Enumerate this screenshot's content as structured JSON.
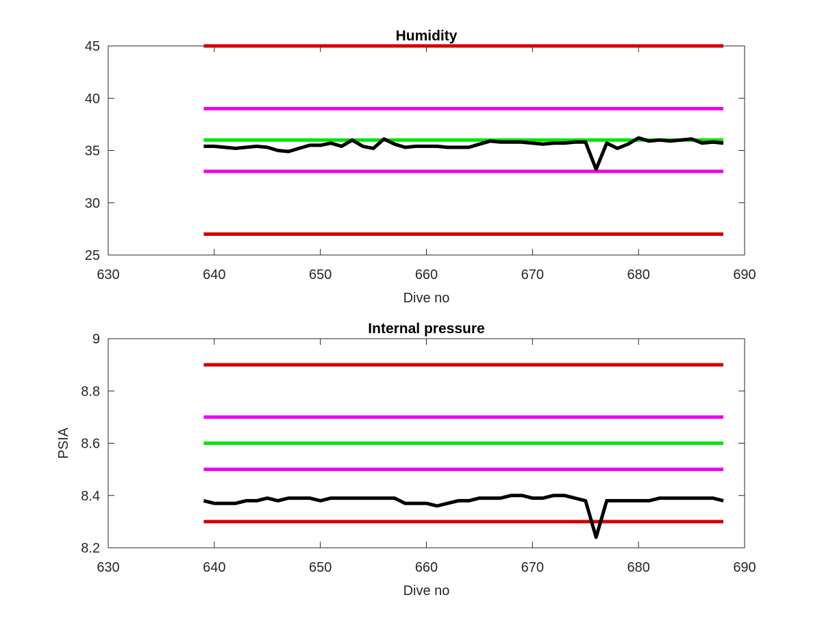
{
  "colors": {
    "red_limit": "#d00000",
    "magenta_limit": "#ee00ee",
    "green_target": "#00e600",
    "measurement": "#000000",
    "axes": "#262626"
  },
  "chart_data": [
    {
      "type": "line",
      "title": "Humidity",
      "xlabel": "Dive no",
      "ylabel": "",
      "xlim": [
        630,
        690
      ],
      "ylim": [
        25,
        45
      ],
      "xticks": [
        630,
        640,
        650,
        660,
        670,
        680,
        690
      ],
      "yticks": [
        25,
        30,
        35,
        40,
        45
      ],
      "xtick_labels": [
        "630",
        "640",
        "650",
        "660",
        "670",
        "680",
        "690"
      ],
      "ytick_labels": [
        "25",
        "30",
        "35",
        "40",
        "45"
      ],
      "grid": false,
      "series": [
        {
          "role": "red_limit",
          "x": [
            639,
            688
          ],
          "values": [
            45,
            45
          ]
        },
        {
          "role": "magenta_limit",
          "x": [
            639,
            688
          ],
          "values": [
            39,
            39
          ]
        },
        {
          "role": "green_target",
          "x": [
            639,
            688
          ],
          "values": [
            36,
            36
          ]
        },
        {
          "role": "magenta_limit",
          "x": [
            639,
            688
          ],
          "values": [
            33,
            33
          ]
        },
        {
          "role": "red_limit",
          "x": [
            639,
            688
          ],
          "values": [
            27,
            27
          ]
        },
        {
          "role": "measurement",
          "x": [
            639,
            640,
            641,
            642,
            643,
            644,
            645,
            646,
            647,
            648,
            649,
            650,
            651,
            652,
            653,
            654,
            655,
            656,
            657,
            658,
            659,
            660,
            661,
            662,
            663,
            664,
            665,
            666,
            667,
            668,
            669,
            670,
            671,
            672,
            673,
            674,
            675,
            676,
            677,
            678,
            679,
            680,
            681,
            682,
            683,
            684,
            685,
            686,
            687,
            688
          ],
          "values": [
            35.4,
            35.4,
            35.3,
            35.2,
            35.3,
            35.4,
            35.3,
            35.0,
            34.9,
            35.2,
            35.5,
            35.5,
            35.7,
            35.4,
            36.0,
            35.4,
            35.2,
            36.1,
            35.6,
            35.3,
            35.4,
            35.4,
            35.4,
            35.3,
            35.3,
            35.3,
            35.6,
            35.9,
            35.8,
            35.8,
            35.8,
            35.7,
            35.6,
            35.7,
            35.7,
            35.8,
            35.8,
            33.2,
            35.7,
            35.2,
            35.6,
            36.2,
            35.9,
            36.0,
            35.9,
            36.0,
            36.1,
            35.7,
            35.8,
            35.7
          ]
        }
      ]
    },
    {
      "type": "line",
      "title": "Internal pressure",
      "xlabel": "Dive no",
      "ylabel": "PSIA",
      "xlim": [
        630,
        690
      ],
      "ylim": [
        8.2,
        9
      ],
      "xticks": [
        630,
        640,
        650,
        660,
        670,
        680,
        690
      ],
      "yticks": [
        8.2,
        8.4,
        8.6,
        8.8,
        9
      ],
      "xtick_labels": [
        "630",
        "640",
        "650",
        "660",
        "670",
        "680",
        "690"
      ],
      "ytick_labels": [
        "8.2",
        "8.4",
        "8.6",
        "8.8",
        "9"
      ],
      "grid": false,
      "series": [
        {
          "role": "red_limit",
          "x": [
            639,
            688
          ],
          "values": [
            8.9,
            8.9
          ]
        },
        {
          "role": "magenta_limit",
          "x": [
            639,
            688
          ],
          "values": [
            8.7,
            8.7
          ]
        },
        {
          "role": "green_target",
          "x": [
            639,
            688
          ],
          "values": [
            8.6,
            8.6
          ]
        },
        {
          "role": "magenta_limit",
          "x": [
            639,
            688
          ],
          "values": [
            8.5,
            8.5
          ]
        },
        {
          "role": "red_limit",
          "x": [
            639,
            688
          ],
          "values": [
            8.3,
            8.3
          ]
        },
        {
          "role": "measurement",
          "x": [
            639,
            640,
            641,
            642,
            643,
            644,
            645,
            646,
            647,
            648,
            649,
            650,
            651,
            652,
            653,
            654,
            655,
            656,
            657,
            658,
            659,
            660,
            661,
            662,
            663,
            664,
            665,
            666,
            667,
            668,
            669,
            670,
            671,
            672,
            673,
            674,
            675,
            676,
            677,
            678,
            679,
            680,
            681,
            682,
            683,
            684,
            685,
            686,
            687,
            688
          ],
          "values": [
            8.38,
            8.37,
            8.37,
            8.37,
            8.38,
            8.38,
            8.39,
            8.38,
            8.39,
            8.39,
            8.39,
            8.38,
            8.39,
            8.39,
            8.39,
            8.39,
            8.39,
            8.39,
            8.39,
            8.37,
            8.37,
            8.37,
            8.36,
            8.37,
            8.38,
            8.38,
            8.39,
            8.39,
            8.39,
            8.4,
            8.4,
            8.39,
            8.39,
            8.4,
            8.4,
            8.39,
            8.38,
            8.24,
            8.38,
            8.38,
            8.38,
            8.38,
            8.38,
            8.39,
            8.39,
            8.39,
            8.39,
            8.39,
            8.39,
            8.38
          ]
        }
      ]
    }
  ]
}
